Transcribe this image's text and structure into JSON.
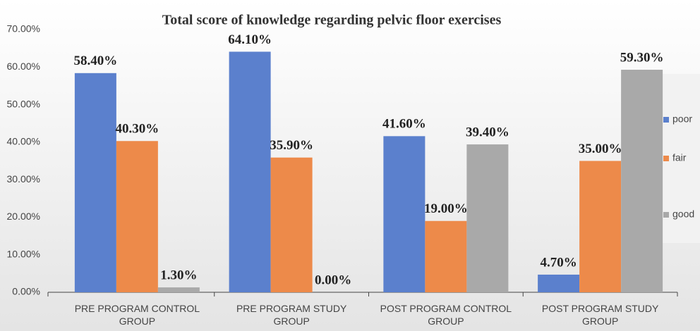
{
  "chart_data": {
    "type": "bar",
    "title": "Total score of knowledge regarding pelvic floor exercises",
    "categories": [
      "PRE PROGRAM CONTROL GROUP",
      "PRE PROGRAM STUDY GROUP",
      "POST PROGRAM CONTROL GROUP",
      "POST PROGRAM STUDY GROUP"
    ],
    "series": [
      {
        "name": "poor",
        "color": "#5b80cd",
        "values": [
          58.4,
          64.1,
          41.6,
          4.7
        ],
        "value_labels": [
          "58.40%",
          "64.10%",
          "41.60%",
          "4.70%"
        ]
      },
      {
        "name": "fair",
        "color": "#ed8a4a",
        "values": [
          40.3,
          35.9,
          19.0,
          35.0
        ],
        "value_labels": [
          "40.30%",
          "35.90%",
          "19.00%",
          "35.00%"
        ]
      },
      {
        "name": "good",
        "color": "#a9a9a9",
        "values": [
          1.3,
          0.0,
          39.4,
          59.3
        ],
        "value_labels": [
          "1.30%",
          "0.00%",
          "39.40%",
          "59.30%"
        ]
      }
    ],
    "ylim": [
      0,
      70
    ],
    "yticks": [
      {
        "value": 0,
        "label": "0.00%"
      },
      {
        "value": 10,
        "label": "10.00%"
      },
      {
        "value": 20,
        "label": "20.00%"
      },
      {
        "value": 30,
        "label": "30.00%"
      },
      {
        "value": 40,
        "label": "40.00%"
      },
      {
        "value": 50,
        "label": "50.00%"
      },
      {
        "value": 60,
        "label": "60.00%"
      },
      {
        "value": 70,
        "label": "70.00%"
      }
    ],
    "grid": false,
    "legend": "right"
  }
}
